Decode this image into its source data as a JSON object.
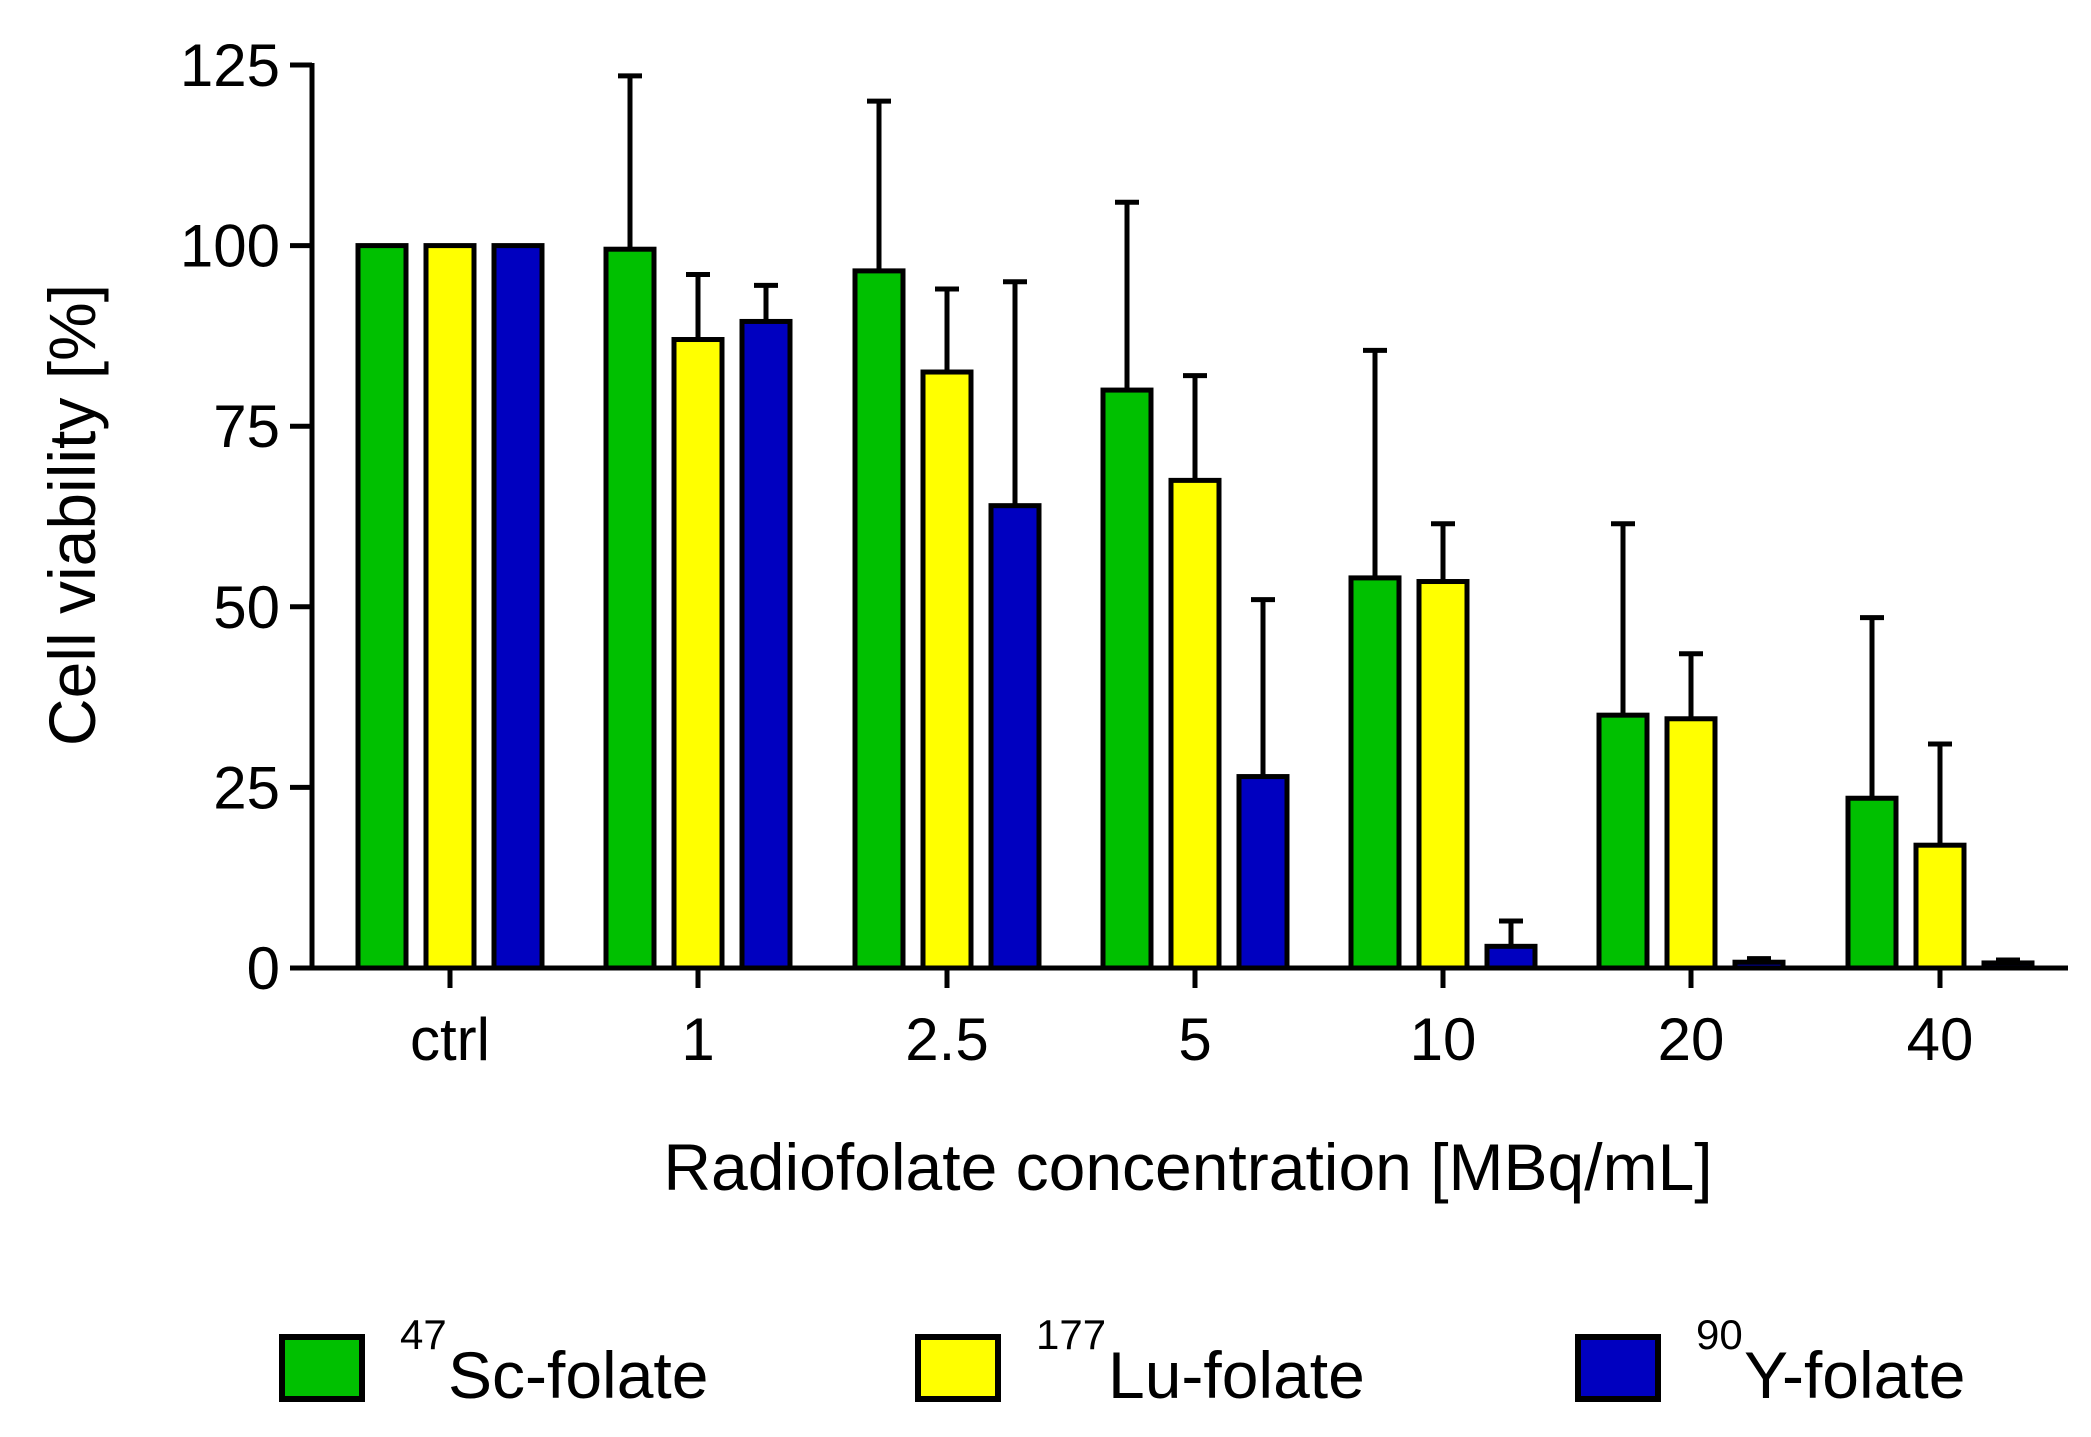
{
  "chart_data": {
    "type": "bar",
    "title": "",
    "xlabel": "Radiofolate concentration [MBq/mL]",
    "ylabel": "Cell viability [%]",
    "ylim": [
      0,
      125
    ],
    "yticks": [
      0,
      25,
      50,
      75,
      100,
      125
    ],
    "error_bars": "one-sided (upper)",
    "categories": [
      "ctrl",
      "1",
      "2.5",
      "5",
      "10",
      "20",
      "40"
    ],
    "series": [
      {
        "name": "Sc-folate",
        "isotope": "47",
        "color": "#00c000",
        "values": [
          100,
          99.5,
          96.5,
          80,
          54,
          35,
          23.5
        ],
        "errors": [
          0,
          24,
          23.5,
          26,
          31.5,
          26.5,
          25
        ]
      },
      {
        "name": "Lu-folate",
        "isotope": "177",
        "color": "#ffff00",
        "values": [
          100,
          87,
          82.5,
          67.5,
          53.5,
          34.5,
          17
        ],
        "errors": [
          0,
          9,
          11.5,
          14.5,
          8,
          9,
          14
        ]
      },
      {
        "name": "Y-folate",
        "isotope": "90",
        "color": "#0000c0",
        "values": [
          100,
          89.5,
          64,
          26.5,
          3,
          0.8,
          0.7
        ],
        "errors": [
          0,
          5,
          31,
          24.5,
          3.5,
          0.5,
          0.4
        ]
      }
    ],
    "legend_position": "bottom"
  }
}
